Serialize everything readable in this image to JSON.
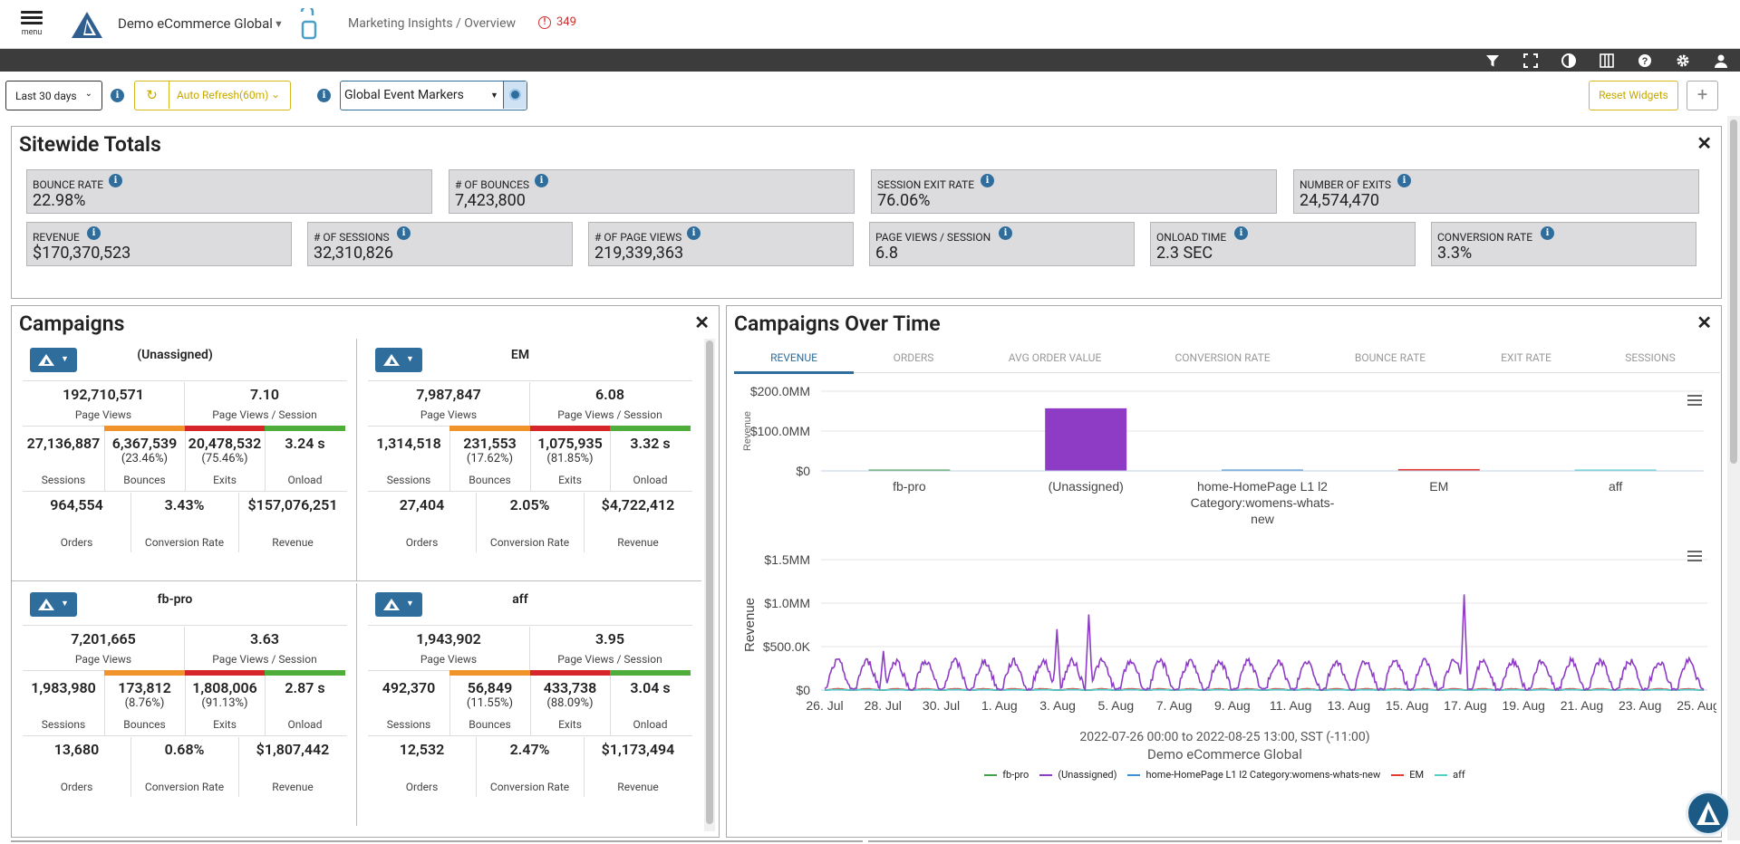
{
  "header": {
    "menu_label": "menu",
    "site_name": "Demo eCommerce Global",
    "breadcrumb": "Marketing Insights / Overview",
    "alert_count": "349"
  },
  "toolbar": {
    "date_range": "Last 30 days",
    "auto_refresh": "Auto Refresh(60m)",
    "event_markers": "Global Event Markers",
    "reset_widgets": "Reset Widgets",
    "add": "+"
  },
  "sitewide": {
    "title": "Sitewide Totals",
    "row1": [
      {
        "label": "Bounce Rate",
        "value": "22.98%"
      },
      {
        "label": "# of Bounces",
        "value": "7,423,800"
      },
      {
        "label": "Session Exit Rate",
        "value": "76.06%"
      },
      {
        "label": "Number of Exits",
        "value": "24,574,470"
      }
    ],
    "row2": [
      {
        "label": "Revenue",
        "value": "$170,370,523"
      },
      {
        "label": "# of Sessions",
        "value": "32,310,826"
      },
      {
        "label": "# of Page Views",
        "value": "219,339,363"
      },
      {
        "label": "Page Views / Session",
        "value": "6.8"
      },
      {
        "label": "Onload Time",
        "value": "2.3 SEC"
      },
      {
        "label": "Conversion Rate",
        "value": "3.3%"
      }
    ]
  },
  "campaigns": {
    "title": "Campaigns",
    "labels": {
      "page_views": "Page Views",
      "pvs": "Page Views / Session",
      "sessions": "Sessions",
      "bounces": "Bounces",
      "exits": "Exits",
      "onload": "Onload",
      "orders": "Orders",
      "conversion": "Conversion Rate",
      "revenue": "Revenue"
    },
    "items": [
      {
        "name": "(Unassigned)",
        "page_views": "192,710,571",
        "pvs": "7.10",
        "sessions": "27,136,887",
        "bounces": "6,367,539",
        "bounce_pct": "(23.46%)",
        "exits": "20,478,532",
        "exit_pct": "(75.46%)",
        "onload": "3.24 s",
        "orders": "964,554",
        "conversion": "3.43%",
        "revenue": "$157,076,251"
      },
      {
        "name": "EM",
        "page_views": "7,987,847",
        "pvs": "6.08",
        "sessions": "1,314,518",
        "bounces": "231,553",
        "bounce_pct": "(17.62%)",
        "exits": "1,075,935",
        "exit_pct": "(81.85%)",
        "onload": "3.32 s",
        "orders": "27,404",
        "conversion": "2.05%",
        "revenue": "$4,722,412"
      },
      {
        "name": "fb-pro",
        "page_views": "7,201,665",
        "pvs": "3.63",
        "sessions": "1,983,980",
        "bounces": "173,812",
        "bounce_pct": "(8.76%)",
        "exits": "1,808,006",
        "exit_pct": "(91.13%)",
        "onload": "2.87 s",
        "orders": "13,680",
        "conversion": "0.68%",
        "revenue": "$1,807,442"
      },
      {
        "name": "aff",
        "page_views": "1,943,902",
        "pvs": "3.95",
        "sessions": "492,370",
        "bounces": "56,849",
        "bounce_pct": "(11.55%)",
        "exits": "433,738",
        "exit_pct": "(88.09%)",
        "onload": "3.04 s",
        "orders": "12,532",
        "conversion": "2.47%",
        "revenue": "$1,173,494"
      }
    ]
  },
  "cot": {
    "title": "Campaigns Over Time",
    "tabs": [
      "Revenue",
      "Orders",
      "Avg Order Value",
      "Conversion Rate",
      "Bounce Rate",
      "Exit Rate",
      "Sessions"
    ],
    "subtitle": "2022-07-26 00:00 to 2022-08-25 13:00, SST (-11:00)",
    "site": "Demo eCommerce Global"
  },
  "chart_data": [
    {
      "type": "bar",
      "ylabel": "Revenue",
      "ylim": [
        0,
        200
      ],
      "yticks": [
        "$0",
        "$100.0MM",
        "$200.0MM"
      ],
      "categories": [
        "fb-pro",
        "(Unassigned)",
        "home-HomePage L1 l2 Category:womens-whats-new",
        "EM",
        "aff"
      ],
      "values": [
        1.8,
        157.1,
        0.3,
        4.7,
        1.2
      ],
      "colors": [
        "#43a047",
        "#8e3cc6",
        "#3f8fd4",
        "#e53935",
        "#4dd0c8"
      ]
    },
    {
      "type": "line",
      "ylabel": "Revenue",
      "ylim": [
        0,
        1500000
      ],
      "yticks": [
        "$0",
        "$500.0K",
        "$1.0MM",
        "$1.5MM"
      ],
      "xticks": [
        "26. Jul",
        "28. Jul",
        "30. Jul",
        "1. Aug",
        "3. Aug",
        "5. Aug",
        "7. Aug",
        "9. Aug",
        "11. Aug",
        "13. Aug",
        "15. Aug",
        "17. Aug",
        "19. Aug",
        "21. Aug",
        "23. Aug",
        "25. Aug"
      ],
      "legend": "bottom",
      "series": [
        {
          "name": "fb-pro",
          "color": "#43a047"
        },
        {
          "name": "(Unassigned)",
          "color": "#8e3cc6"
        },
        {
          "name": "home-HomePage L1 l2 Category:womens-whats-new",
          "color": "#3f8fd4"
        },
        {
          "name": "EM",
          "color": "#e53935"
        },
        {
          "name": "aff",
          "color": "#4dd0c8"
        }
      ]
    }
  ]
}
